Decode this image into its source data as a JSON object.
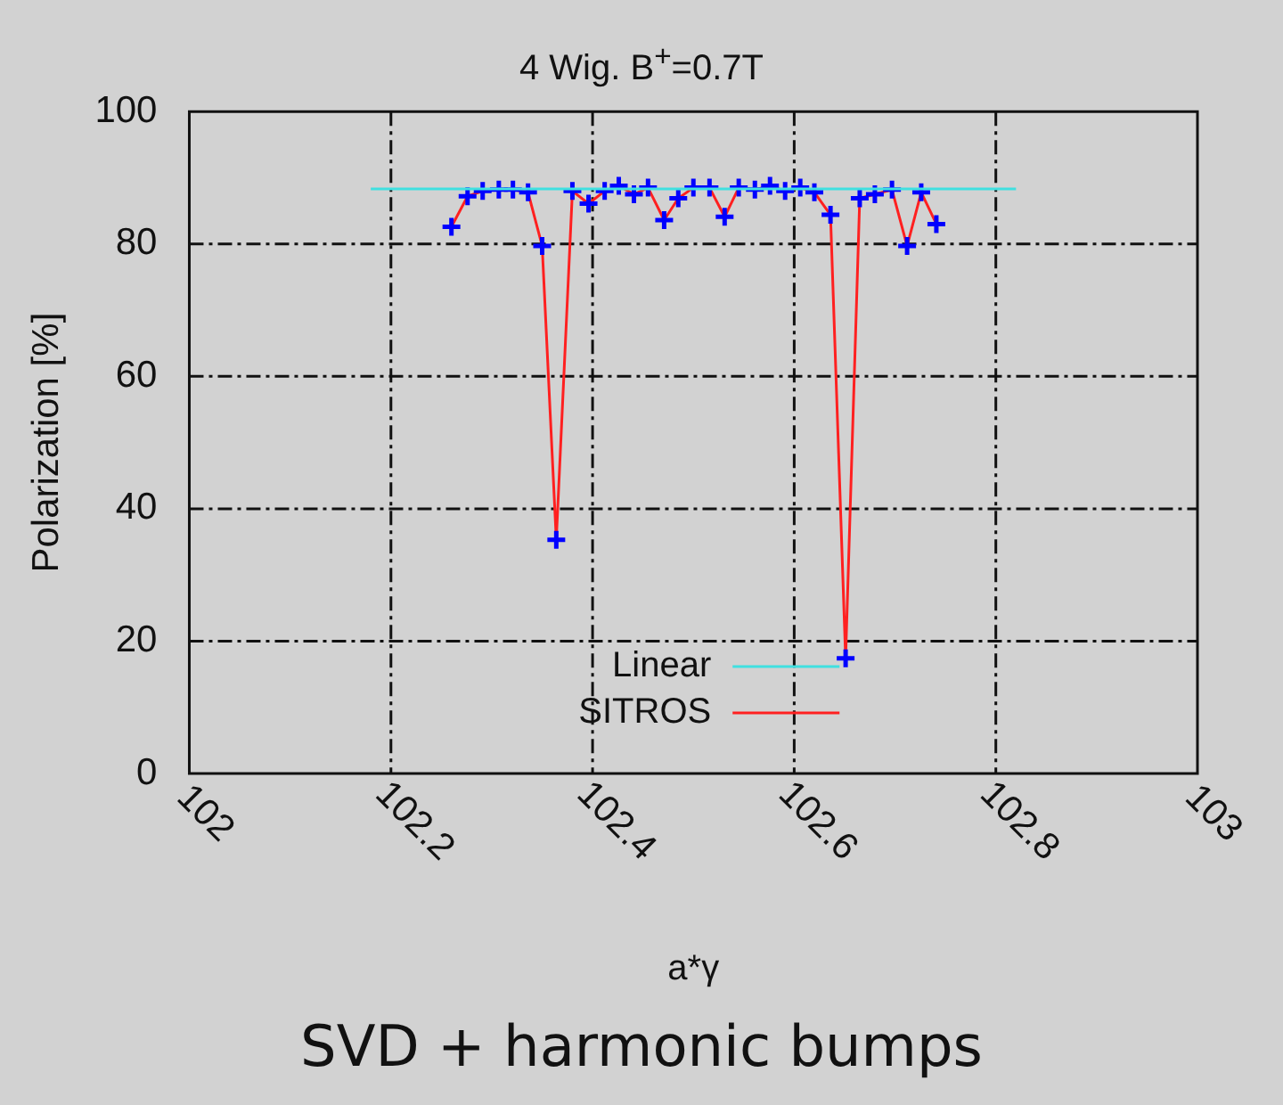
{
  "chart_data": {
    "type": "line",
    "title": "4 Wig. B$^{+}$=0.7T",
    "xlabel": "a*γ",
    "ylabel": "Polarization [%]",
    "xlim": [
      102,
      103
    ],
    "xticks": [
      102,
      102.2,
      102.4,
      102.6,
      102.8,
      103
    ],
    "ylim": [
      0,
      100
    ],
    "yticks": [
      0,
      20,
      40,
      60,
      80,
      100
    ],
    "grid": true,
    "legend": "bottom",
    "marker": "cross",
    "line_style": "solid",
    "series": [
      {
        "name": "Linear",
        "color": "#40e0e0",
        "marker": "none",
        "x": [
          102.18,
          102.82
        ],
        "values": [
          88.3,
          88.3
        ]
      },
      {
        "name": "SITROS",
        "color": "#ff2020",
        "colors": [
          "#0000ff",
          "#0000ff",
          "#0000ff",
          "#0000ff",
          "#0000ff",
          "#0000ff",
          "#0000ff",
          "#0000ff",
          "#0000ff",
          "#0000ff",
          "#0000ff",
          "#0000ff",
          "#0000ff",
          "#0000ff",
          "#0000ff",
          "#0000ff",
          "#0000ff",
          "#0000ff",
          "#0000ff",
          "#0000ff",
          "#0000ff",
          "#0000ff",
          "#0000ff",
          "#0000ff",
          "#0000ff",
          "#0000ff",
          "#0000ff",
          "#0000ff",
          "#0000ff",
          "#0000ff",
          "#0000ff",
          "#0000ff",
          "#0000ff"
        ],
        "x": [
          102.26,
          102.276,
          102.291,
          102.307,
          102.321,
          102.336,
          102.35,
          102.364,
          102.38,
          102.396,
          102.412,
          102.426,
          102.441,
          102.455,
          102.471,
          102.485,
          102.5,
          102.516,
          102.531,
          102.545,
          102.561,
          102.576,
          102.591,
          102.606,
          102.62,
          102.636,
          102.651,
          102.665,
          102.68,
          102.697,
          102.712,
          102.726,
          102.741
        ],
        "values": [
          82.6,
          87.2,
          88.0,
          88.2,
          88.2,
          87.8,
          79.7,
          35.3,
          88.0,
          86.1,
          88.0,
          88.8,
          87.5,
          88.5,
          83.6,
          86.9,
          88.5,
          88.5,
          84.1,
          88.5,
          88.2,
          88.8,
          88.0,
          88.5,
          87.8,
          84.4,
          17.4,
          86.9,
          87.5,
          88.2,
          79.7,
          87.8,
          83.0
        ]
      }
    ],
    "annotations": [
      "SVD + harmonic bumps"
    ]
  }
}
